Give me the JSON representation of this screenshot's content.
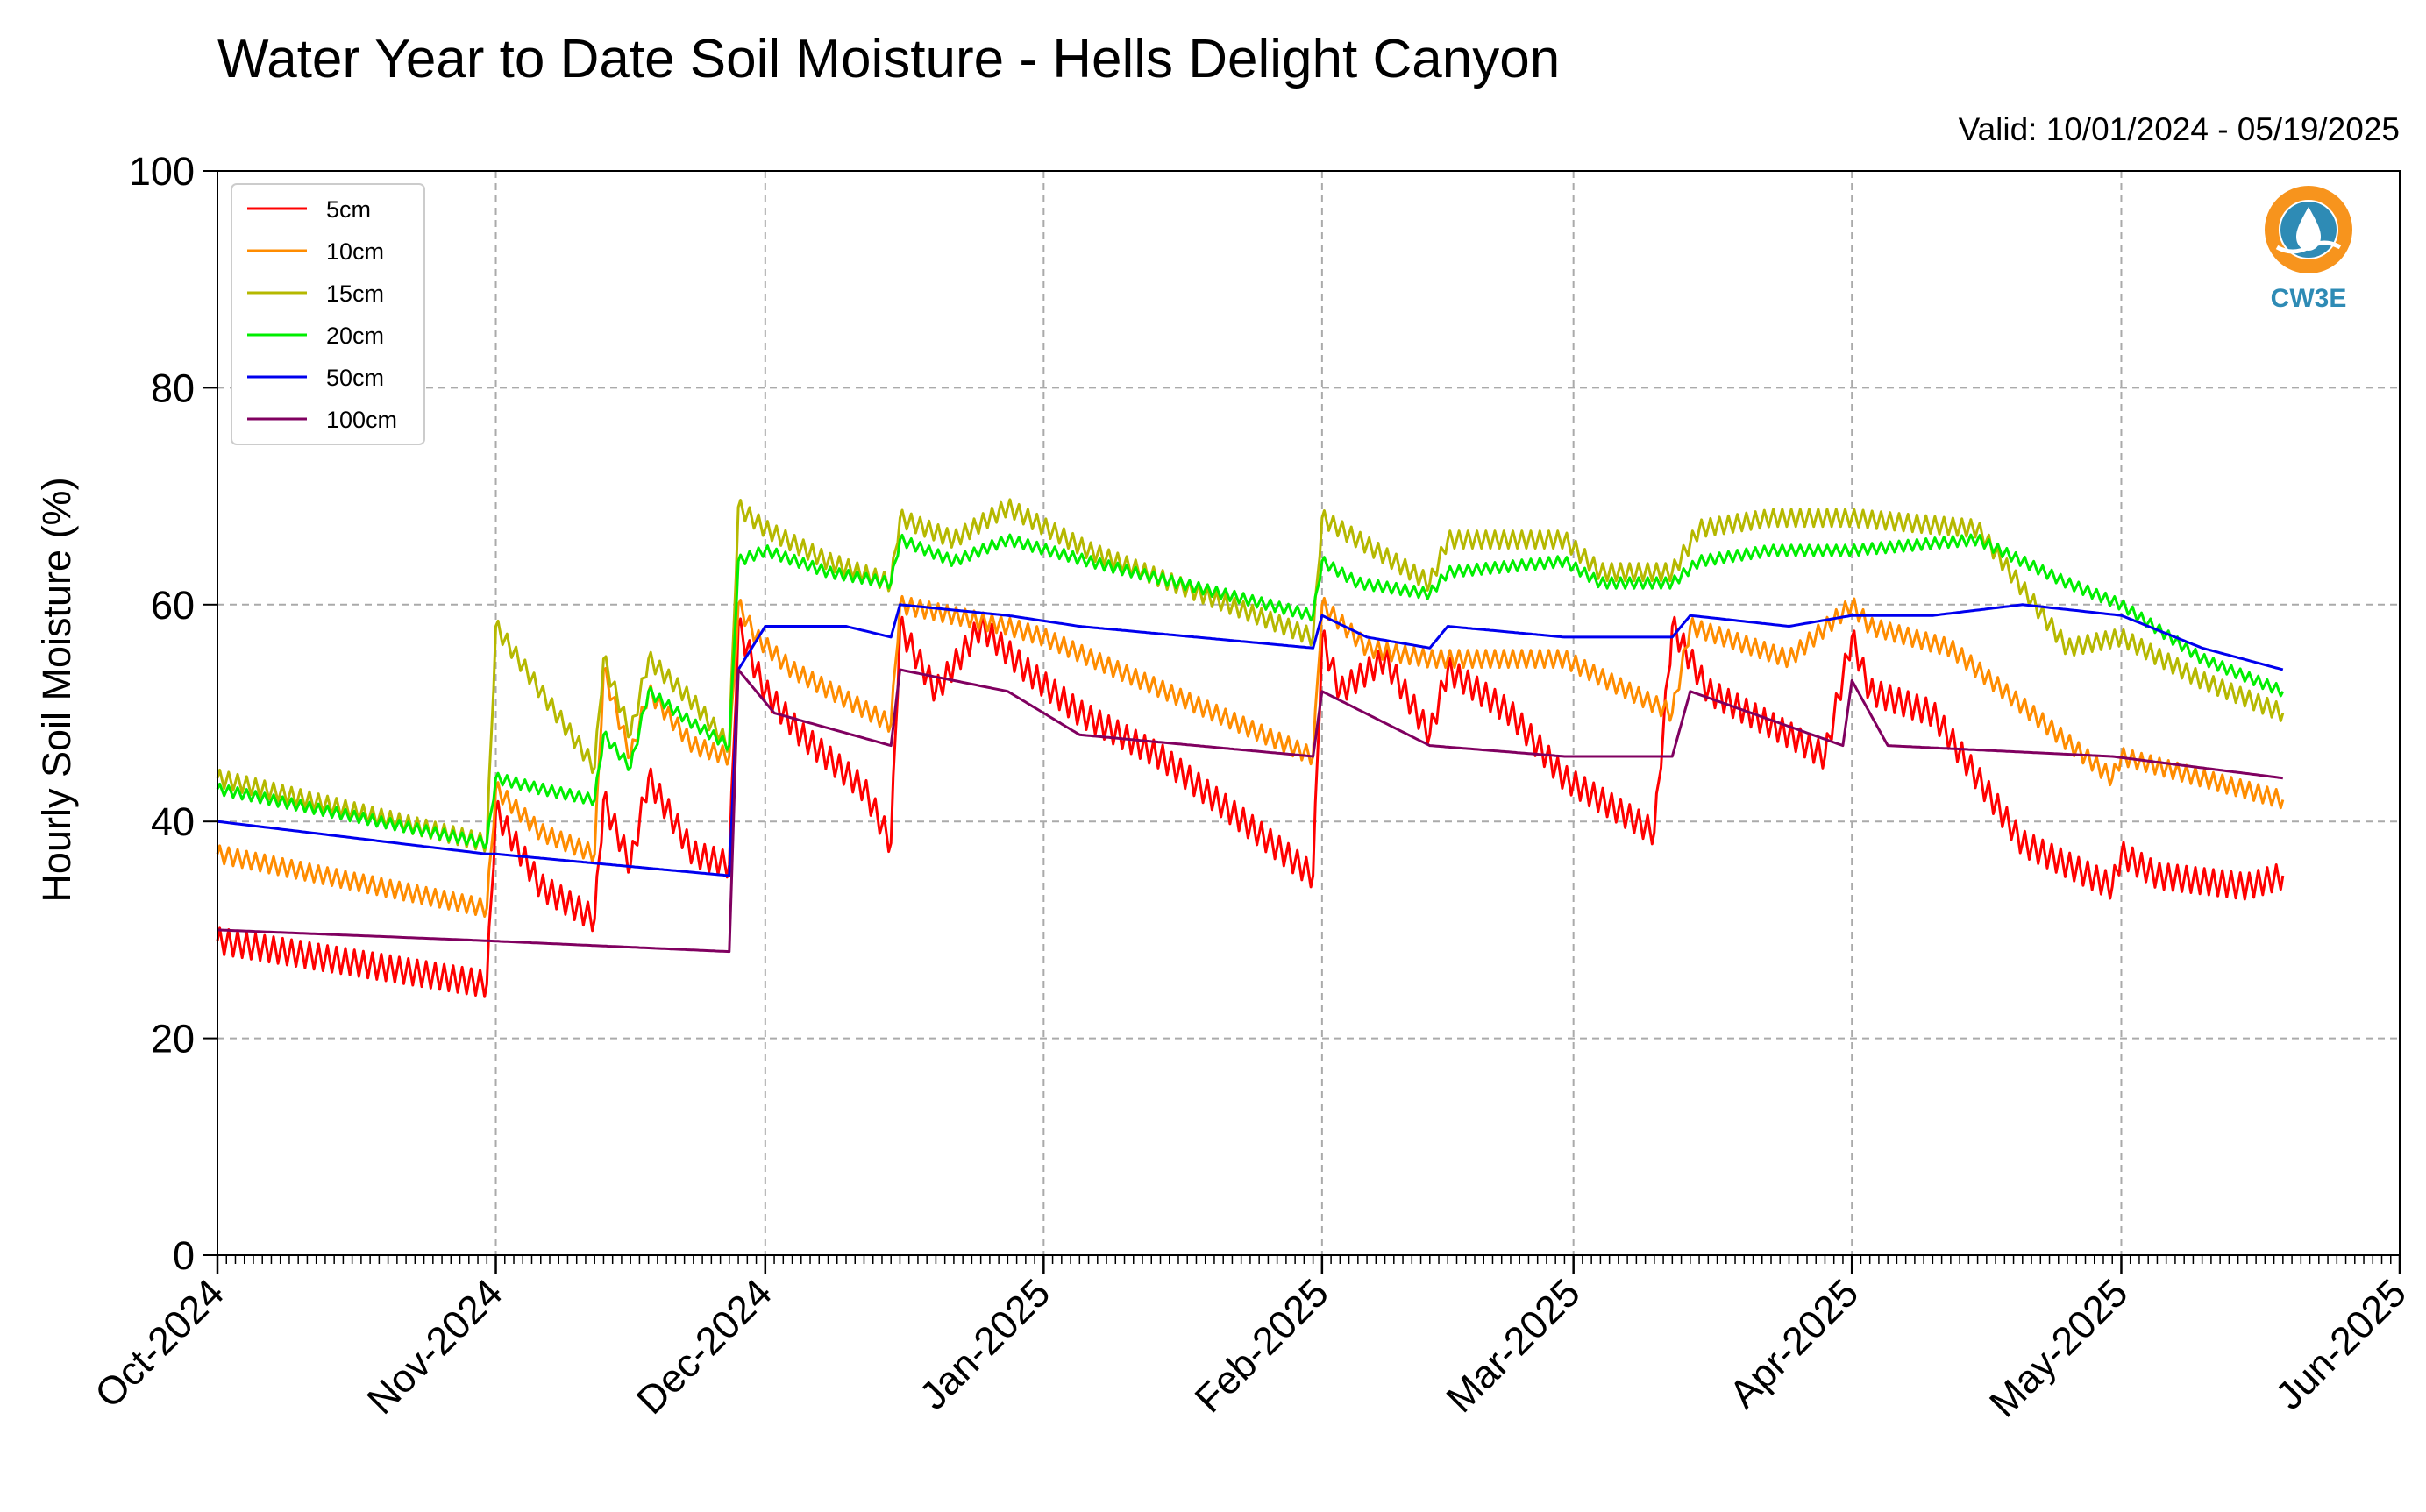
{
  "chart_data": {
    "type": "line",
    "title": "Water Year to Date Soil Moisture - Hells Delight Canyon",
    "subtitle": "Valid: 10/01/2024 - 05/19/2025",
    "xlabel": "",
    "ylabel": "Hourly Soil Moisture (%)",
    "ylim": [
      0,
      100
    ],
    "xlim": [
      "2024-10-01",
      "2025-06-01"
    ],
    "yticks": [
      "0",
      "20",
      "40",
      "60",
      "80",
      "100"
    ],
    "xticks": [
      "Oct-2024",
      "Nov-2024",
      "Dec-2024",
      "Jan-2025",
      "Feb-2025",
      "Mar-2025",
      "Apr-2025",
      "May-2025",
      "Jun-2025"
    ],
    "grid": true,
    "legend_position": "top-left",
    "series": [
      {
        "name": "5cm",
        "color": "#ff0000",
        "noise": 1.2,
        "x": [
          "2024-10-01",
          "2024-10-31",
          "2024-11-01",
          "2024-11-06",
          "2024-11-12",
          "2024-11-13",
          "2024-11-16",
          "2024-11-18",
          "2024-11-23",
          "2024-11-27",
          "2024-11-28",
          "2024-12-01",
          "2024-12-05",
          "2024-12-12",
          "2024-12-15",
          "2024-12-16",
          "2024-12-20",
          "2024-12-25",
          "2024-12-30",
          "2025-01-05",
          "2025-01-14",
          "2025-01-31",
          "2025-02-01",
          "2025-02-03",
          "2025-02-08",
          "2025-02-13",
          "2025-02-15",
          "2025-02-22",
          "2025-02-28",
          "2025-03-10",
          "2025-03-12",
          "2025-03-16",
          "2025-03-25",
          "2025-03-29",
          "2025-04-01",
          "2025-04-03",
          "2025-04-10",
          "2025-04-20",
          "2025-04-30",
          "2025-05-01",
          "2025-05-05",
          "2025-05-15",
          "2025-05-19"
        ],
        "y": [
          29,
          25,
          41,
          34,
          31,
          42,
          36,
          44,
          37,
          36,
          58,
          52,
          48,
          43,
          38,
          58,
          52,
          58,
          54,
          50,
          46,
          35,
          57,
          52,
          55,
          48,
          54,
          50,
          44,
          39,
          58,
          52,
          48,
          46,
          57,
          52,
          50,
          38,
          34,
          37,
          35,
          34,
          35
        ]
      },
      {
        "name": "10cm",
        "color": "#ff8c00",
        "noise": 0.8,
        "x": [
          "2024-10-01",
          "2024-10-31",
          "2024-11-01",
          "2024-11-06",
          "2024-11-12",
          "2024-11-13",
          "2024-11-16",
          "2024-11-18",
          "2024-11-23",
          "2024-11-27",
          "2024-11-28",
          "2024-11-30",
          "2024-12-04",
          "2024-12-15",
          "2024-12-16",
          "2024-12-28",
          "2025-01-01",
          "2025-01-31",
          "2025-02-01",
          "2025-02-06",
          "2025-02-13",
          "2025-02-28",
          "2025-03-12",
          "2025-03-14",
          "2025-03-25",
          "2025-04-01",
          "2025-04-03",
          "2025-04-12",
          "2025-04-30",
          "2025-05-01",
          "2025-05-19"
        ],
        "y": [
          37,
          32,
          43,
          39,
          37,
          54,
          46,
          52,
          47,
          46,
          60,
          57,
          54,
          49,
          60,
          58,
          57,
          46,
          60,
          56,
          55,
          55,
          50,
          58,
          55,
          60,
          58,
          56,
          44,
          46,
          42
        ]
      },
      {
        "name": "15cm",
        "color": "#b5b800",
        "noise": 0.8,
        "x": [
          "2024-10-01",
          "2024-10-31",
          "2024-11-01",
          "2024-11-06",
          "2024-11-12",
          "2024-11-13",
          "2024-11-16",
          "2024-11-18",
          "2024-11-23",
          "2024-11-27",
          "2024-11-28",
          "2024-12-01",
          "2024-12-08",
          "2024-12-15",
          "2024-12-16",
          "2024-12-22",
          "2024-12-28",
          "2025-01-06",
          "2025-01-31",
          "2025-02-01",
          "2025-02-05",
          "2025-02-13",
          "2025-02-15",
          "2025-02-28",
          "2025-03-04",
          "2025-03-12",
          "2025-03-15",
          "2025-03-23",
          "2025-04-01",
          "2025-04-15",
          "2025-04-25",
          "2025-05-01",
          "2025-05-10",
          "2025-05-19"
        ],
        "y": [
          44,
          38,
          58,
          52,
          45,
          55,
          48,
          55,
          51,
          47,
          69,
          67,
          64,
          62,
          68,
          66,
          69,
          65,
          57,
          68,
          66,
          62,
          66,
          66,
          63,
          63,
          67,
          68,
          68,
          67,
          56,
          57,
          53,
          50
        ]
      },
      {
        "name": "20cm",
        "color": "#00ee00",
        "noise": 0.5,
        "x": [
          "2024-10-01",
          "2024-10-31",
          "2024-11-01",
          "2024-11-06",
          "2024-11-12",
          "2024-11-13",
          "2024-11-16",
          "2024-11-18",
          "2024-11-23",
          "2024-11-27",
          "2024-11-28",
          "2024-12-01",
          "2024-12-08",
          "2024-12-15",
          "2024-12-16",
          "2024-12-22",
          "2024-12-28",
          "2025-01-06",
          "2025-01-31",
          "2025-02-01",
          "2025-02-05",
          "2025-02-13",
          "2025-02-15",
          "2025-02-28",
          "2025-03-04",
          "2025-03-12",
          "2025-03-15",
          "2025-03-23",
          "2025-04-01",
          "2025-04-15",
          "2025-04-25",
          "2025-05-01",
          "2025-05-10",
          "2025-05-19"
        ],
        "y": [
          43,
          38,
          44,
          43,
          42,
          48,
          45,
          52,
          49,
          47,
          64,
          65,
          63,
          62,
          66,
          64,
          66,
          64,
          59,
          64,
          62,
          61,
          63,
          64,
          62,
          62,
          64,
          65,
          65,
          66,
          62,
          60,
          55,
          52
        ]
      },
      {
        "name": "50cm",
        "color": "#0000ee",
        "noise": 0,
        "x": [
          "2024-10-01",
          "2024-10-31",
          "2024-11-01",
          "2024-11-27",
          "2024-11-28",
          "2024-12-01",
          "2024-12-10",
          "2024-12-15",
          "2024-12-16",
          "2024-12-28",
          "2025-01-05",
          "2025-01-31",
          "2025-02-01",
          "2025-02-06",
          "2025-02-13",
          "2025-02-15",
          "2025-02-28",
          "2025-03-12",
          "2025-03-14",
          "2025-03-25",
          "2025-04-01",
          "2025-04-10",
          "2025-04-20",
          "2025-05-01",
          "2025-05-10",
          "2025-05-19"
        ],
        "y": [
          40,
          37,
          37,
          35,
          54,
          58,
          58,
          57,
          60,
          59,
          58,
          56,
          59,
          57,
          56,
          58,
          57,
          57,
          59,
          58,
          59,
          59,
          60,
          59,
          56,
          54
        ]
      },
      {
        "name": "100cm",
        "color": "#800060",
        "noise": 0,
        "x": [
          "2024-10-01",
          "2024-10-31",
          "2024-11-27",
          "2024-11-28",
          "2024-12-02",
          "2024-12-15",
          "2024-12-16",
          "2024-12-28",
          "2025-01-05",
          "2025-01-31",
          "2025-02-01",
          "2025-02-13",
          "2025-02-28",
          "2025-03-12",
          "2025-03-14",
          "2025-03-31",
          "2025-04-01",
          "2025-04-05",
          "2025-04-30",
          "2025-05-19"
        ],
        "y": [
          30,
          29,
          28,
          54,
          50,
          47,
          54,
          52,
          48,
          46,
          52,
          47,
          46,
          46,
          52,
          47,
          53,
          47,
          46,
          44
        ]
      }
    ]
  },
  "logo": {
    "text": "CW3E",
    "color": "#2e8bb5",
    "accent": "#f7941d"
  }
}
